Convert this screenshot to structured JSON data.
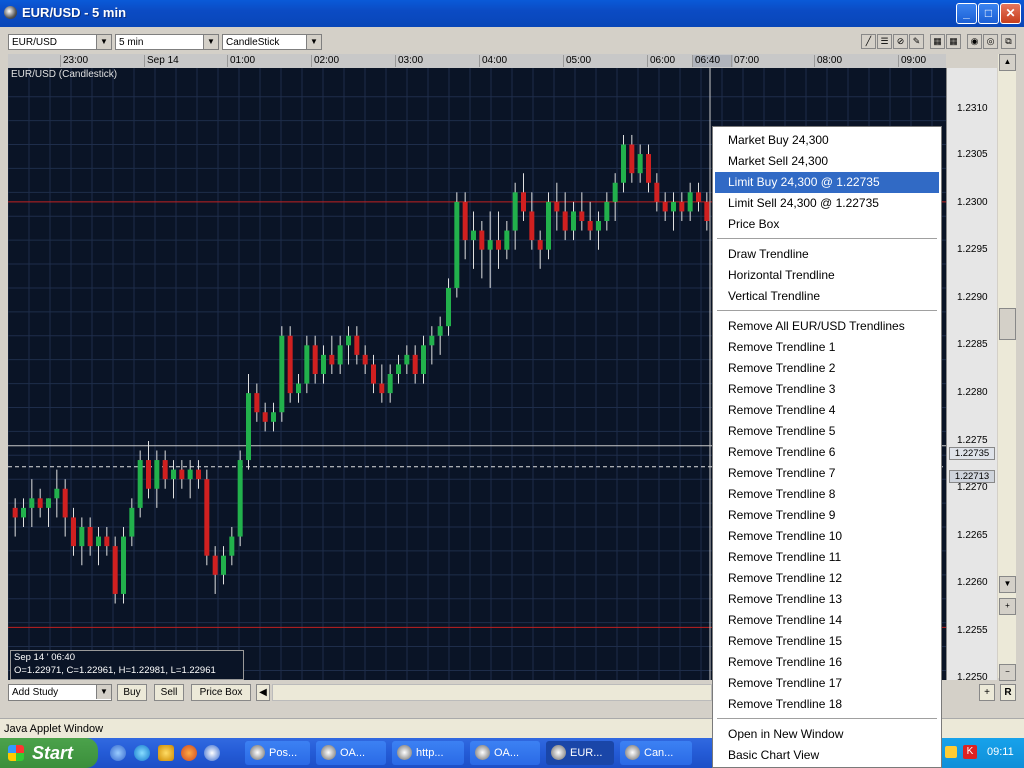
{
  "window": {
    "title": "EUR/USD - 5 min"
  },
  "toolbar": {
    "symbol": "EUR/USD",
    "interval": "5 min",
    "chart_type": "CandleStick"
  },
  "time_axis": {
    "labels": [
      "23:00",
      "Sep 14",
      "01:00",
      "02:00",
      "03:00",
      "04:00",
      "05:00",
      "06:00",
      "06:40",
      "07:00",
      "08:00",
      "09:00"
    ]
  },
  "chart": {
    "title": "EUR/USD (Candlestick)",
    "price_labels": [
      "1.2310",
      "1.2305",
      "1.2300",
      "1.2295",
      "1.2290",
      "1.2285",
      "1.2280",
      "1.2275",
      "1.2270",
      "1.2265",
      "1.2260",
      "1.2255",
      "1.2250"
    ],
    "crosshair_price": "1.22735",
    "current_price": "1.22713",
    "ohlc_date": "Sep 14 ' 06:40",
    "ohlc_values": "O=1.22971, C=1.22961, H=1.22981, L=1.22961",
    "colors": {
      "background": "#0a1426",
      "up": "#22b14c",
      "down": "#d02020",
      "grid": "#1e2d4a",
      "limit_line": "#c02020"
    }
  },
  "chart_data": {
    "type": "candlestick",
    "title": "EUR/USD (Candlestick)",
    "xlabel": "",
    "ylabel": "",
    "ylim": [
      1.2249,
      1.2313
    ],
    "candles": [
      [
        1.2267,
        1.2268,
        1.2264,
        1.2266
      ],
      [
        1.2266,
        1.2268,
        1.2265,
        1.2267
      ],
      [
        1.2267,
        1.227,
        1.2265,
        1.2268
      ],
      [
        1.2268,
        1.2269,
        1.2266,
        1.2267
      ],
      [
        1.2267,
        1.2268,
        1.2265,
        1.2268
      ],
      [
        1.2268,
        1.2271,
        1.2266,
        1.2269
      ],
      [
        1.2269,
        1.227,
        1.2264,
        1.2266
      ],
      [
        1.2266,
        1.2267,
        1.2262,
        1.2263
      ],
      [
        1.2263,
        1.2266,
        1.2261,
        1.2265
      ],
      [
        1.2265,
        1.2266,
        1.2262,
        1.2263
      ],
      [
        1.2263,
        1.2265,
        1.2261,
        1.2264
      ],
      [
        1.2264,
        1.2265,
        1.2262,
        1.2263
      ],
      [
        1.2263,
        1.2264,
        1.2257,
        1.2258
      ],
      [
        1.2258,
        1.2265,
        1.2257,
        1.2264
      ],
      [
        1.2264,
        1.2268,
        1.2263,
        1.2267
      ],
      [
        1.2267,
        1.2273,
        1.2266,
        1.2272
      ],
      [
        1.2272,
        1.2274,
        1.2268,
        1.2269
      ],
      [
        1.2269,
        1.2273,
        1.2267,
        1.2272
      ],
      [
        1.2272,
        1.2273,
        1.2269,
        1.227
      ],
      [
        1.227,
        1.2272,
        1.2268,
        1.2271
      ],
      [
        1.2271,
        1.2272,
        1.2269,
        1.227
      ],
      [
        1.227,
        1.2272,
        1.2268,
        1.2271
      ],
      [
        1.2271,
        1.2272,
        1.2269,
        1.227
      ],
      [
        1.227,
        1.2271,
        1.2261,
        1.2262
      ],
      [
        1.2262,
        1.2263,
        1.2258,
        1.226
      ],
      [
        1.226,
        1.2263,
        1.2259,
        1.2262
      ],
      [
        1.2262,
        1.2265,
        1.2261,
        1.2264
      ],
      [
        1.2264,
        1.2273,
        1.2263,
        1.2272
      ],
      [
        1.2272,
        1.2281,
        1.2271,
        1.2279
      ],
      [
        1.2279,
        1.228,
        1.2276,
        1.2277
      ],
      [
        1.2277,
        1.2278,
        1.2275,
        1.2276
      ],
      [
        1.2276,
        1.2278,
        1.2275,
        1.2277
      ],
      [
        1.2277,
        1.2286,
        1.2276,
        1.2285
      ],
      [
        1.2285,
        1.2286,
        1.2278,
        1.2279
      ],
      [
        1.2279,
        1.2281,
        1.2278,
        1.228
      ],
      [
        1.228,
        1.2285,
        1.2279,
        1.2284
      ],
      [
        1.2284,
        1.2285,
        1.228,
        1.2281
      ],
      [
        1.2281,
        1.2284,
        1.228,
        1.2283
      ],
      [
        1.2283,
        1.2285,
        1.2281,
        1.2282
      ],
      [
        1.2282,
        1.2285,
        1.2281,
        1.2284
      ],
      [
        1.2284,
        1.2286,
        1.2282,
        1.2285
      ],
      [
        1.2285,
        1.2286,
        1.2282,
        1.2283
      ],
      [
        1.2283,
        1.2284,
        1.2281,
        1.2282
      ],
      [
        1.2282,
        1.2283,
        1.2279,
        1.228
      ],
      [
        1.228,
        1.2282,
        1.2278,
        1.2279
      ],
      [
        1.2279,
        1.2282,
        1.2278,
        1.2281
      ],
      [
        1.2281,
        1.2283,
        1.228,
        1.2282
      ],
      [
        1.2282,
        1.2284,
        1.2281,
        1.2283
      ],
      [
        1.2283,
        1.2284,
        1.228,
        1.2281
      ],
      [
        1.2281,
        1.2285,
        1.228,
        1.2284
      ],
      [
        1.2284,
        1.2286,
        1.2282,
        1.2285
      ],
      [
        1.2285,
        1.2287,
        1.2283,
        1.2286
      ],
      [
        1.2286,
        1.2291,
        1.2285,
        1.229
      ],
      [
        1.229,
        1.23,
        1.2289,
        1.2299
      ],
      [
        1.2299,
        1.23,
        1.2293,
        1.2295
      ],
      [
        1.2295,
        1.2298,
        1.2292,
        1.2296
      ],
      [
        1.2296,
        1.2297,
        1.2291,
        1.2294
      ],
      [
        1.2294,
        1.2298,
        1.229,
        1.2295
      ],
      [
        1.2295,
        1.2298,
        1.2292,
        1.2294
      ],
      [
        1.2294,
        1.2297,
        1.2293,
        1.2296
      ],
      [
        1.2296,
        1.2301,
        1.2294,
        1.23
      ],
      [
        1.23,
        1.2302,
        1.2297,
        1.2298
      ],
      [
        1.2298,
        1.23,
        1.2294,
        1.2295
      ],
      [
        1.2295,
        1.2296,
        1.2292,
        1.2294
      ],
      [
        1.2294,
        1.23,
        1.2293,
        1.2299
      ],
      [
        1.2299,
        1.2301,
        1.2296,
        1.2298
      ],
      [
        1.2298,
        1.23,
        1.2295,
        1.2296
      ],
      [
        1.2296,
        1.2299,
        1.2295,
        1.2298
      ],
      [
        1.2298,
        1.23,
        1.2296,
        1.2297
      ],
      [
        1.2297,
        1.2299,
        1.2295,
        1.2296
      ],
      [
        1.2296,
        1.2298,
        1.2294,
        1.2297
      ],
      [
        1.2297,
        1.23,
        1.2296,
        1.2299
      ],
      [
        1.2299,
        1.2302,
        1.2297,
        1.2301
      ],
      [
        1.2301,
        1.2306,
        1.23,
        1.2305
      ],
      [
        1.2305,
        1.2306,
        1.2301,
        1.2302
      ],
      [
        1.2302,
        1.2305,
        1.2301,
        1.2304
      ],
      [
        1.2304,
        1.2305,
        1.23,
        1.2301
      ],
      [
        1.2301,
        1.2302,
        1.2298,
        1.2299
      ],
      [
        1.2299,
        1.23,
        1.2297,
        1.2298
      ],
      [
        1.2298,
        1.23,
        1.2296,
        1.2299
      ],
      [
        1.2299,
        1.23,
        1.2297,
        1.2298
      ],
      [
        1.2298,
        1.2301,
        1.2297,
        1.23
      ],
      [
        1.23,
        1.2301,
        1.2298,
        1.2299
      ],
      [
        1.2299,
        1.23,
        1.2296,
        1.2297
      ]
    ]
  },
  "context_menu": {
    "items": [
      "Market Buy 24,300",
      "Market Sell 24,300",
      "Limit Buy 24,300 @ 1.22735",
      "Limit Sell 24,300 @ 1.22735",
      "Price Box",
      "Draw Trendline",
      "Horizontal Trendline",
      "Vertical Trendline",
      "Remove All EUR/USD Trendlines",
      "Remove Trendline 1",
      "Remove Trendline 2",
      "Remove Trendline 3",
      "Remove Trendline 4",
      "Remove Trendline 5",
      "Remove Trendline 6",
      "Remove Trendline 7",
      "Remove Trendline 8",
      "Remove Trendline 9",
      "Remove Trendline 10",
      "Remove Trendline 11",
      "Remove Trendline 12",
      "Remove Trendline 13",
      "Remove Trendline 14",
      "Remove Trendline 15",
      "Remove Trendline 16",
      "Remove Trendline 17",
      "Remove Trendline 18",
      "Open in New Window",
      "Basic Chart View"
    ],
    "selected_index": 2
  },
  "bottom_toolbar": {
    "study": "Add Study",
    "buy": "Buy",
    "sell": "Sell",
    "price_box": "Price Box",
    "reset": "R"
  },
  "status_bar": {
    "text": "Java Applet Window"
  },
  "taskbar": {
    "start": "Start",
    "items": [
      "Pos...",
      "OA...",
      "http...",
      "OA...",
      "EUR...",
      "Can..."
    ],
    "active_index": 4,
    "clock": "09:11"
  }
}
